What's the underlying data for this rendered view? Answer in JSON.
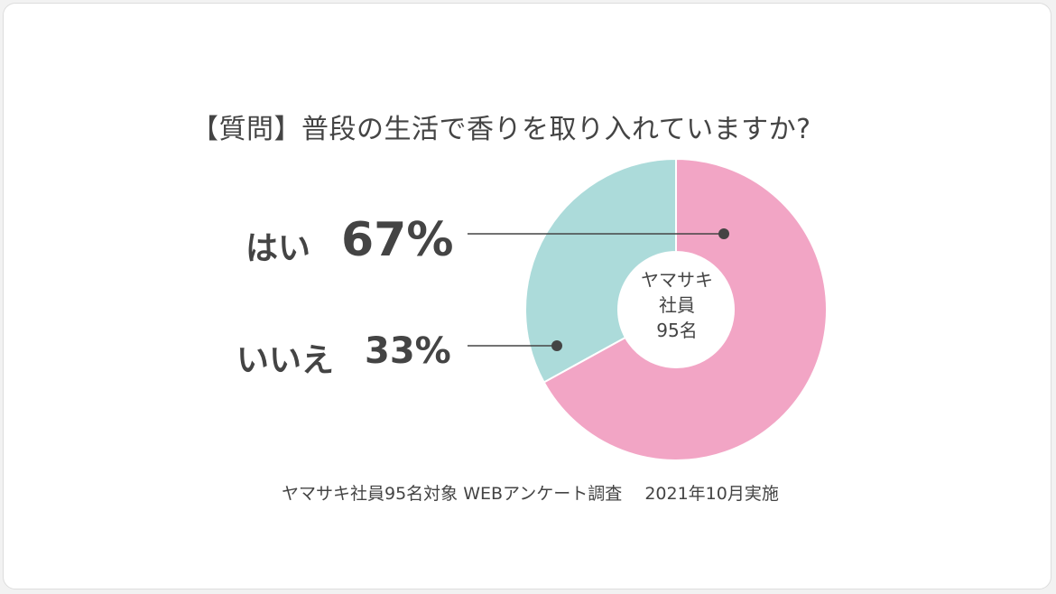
{
  "chart_data": {
    "type": "pie",
    "title": "【質問】普段の生活で香りを取り入れていますか?",
    "slices": [
      {
        "label": "はい",
        "value": 67,
        "value_label": "67%",
        "color": "#f2a5c5"
      },
      {
        "label": "いいえ",
        "value": 33,
        "value_label": "33%",
        "color": "#acdbda"
      }
    ],
    "donut": true,
    "center_text": [
      "ヤマサキ",
      "社員",
      "95名"
    ],
    "footnote": "ヤマサキ社員95名対象 WEBアンケート調査　 2021年10月実施"
  },
  "colors": {
    "text": "#444444",
    "leader_line": "#444444",
    "slice_separator": "#ffffff",
    "background": "#ffffff"
  }
}
